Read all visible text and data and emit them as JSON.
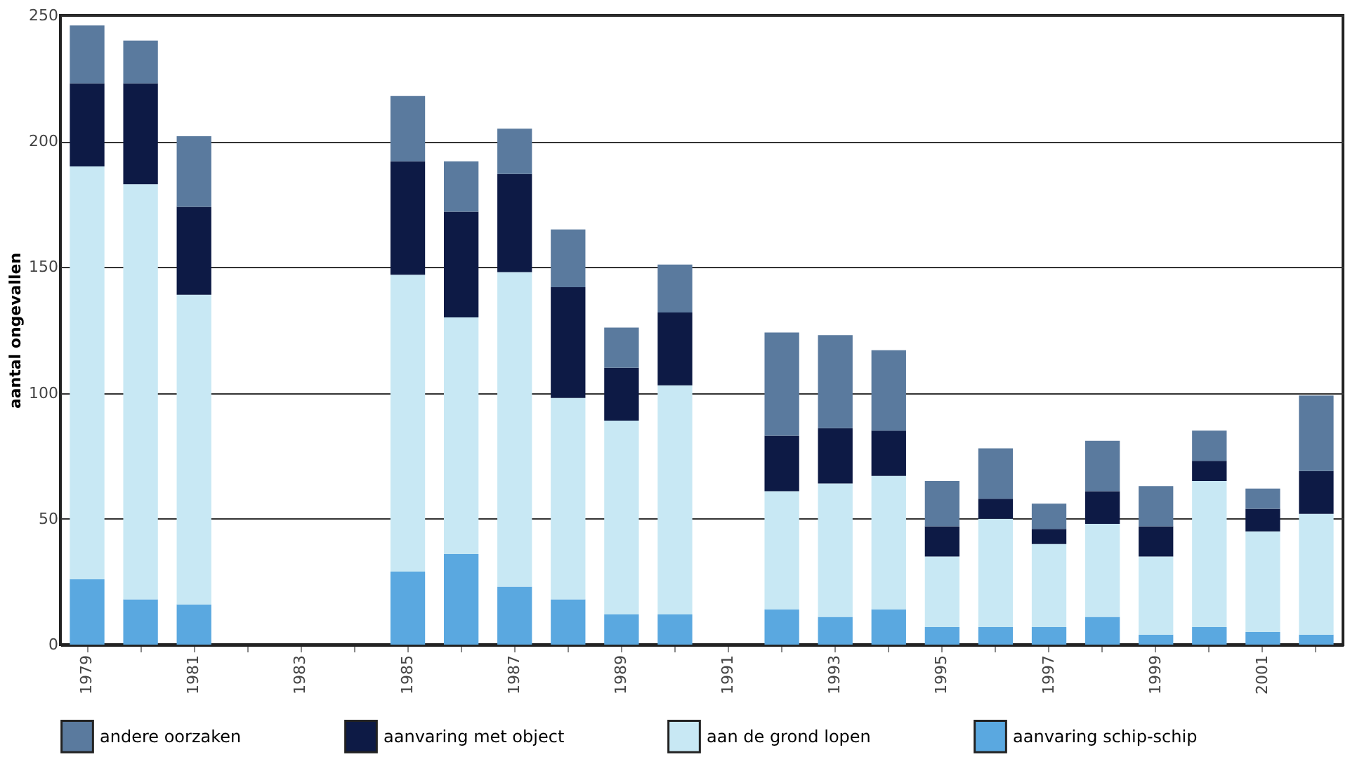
{
  "chart_data": {
    "type": "bar",
    "stacked": true,
    "ylabel": "aantal ongevallen",
    "categories": [
      "1979",
      null,
      "1981",
      null,
      "1983",
      null,
      "1985",
      null,
      "1987",
      null,
      "1989",
      null,
      "1991",
      null,
      "1993",
      null,
      "1995",
      null,
      "1997",
      null,
      "1999",
      null,
      "2001",
      null
    ],
    "series": [
      {
        "name": "aanvaring schip-schip",
        "color": "#5aa8e0",
        "values": [
          26,
          18,
          16,
          null,
          null,
          null,
          29,
          36,
          23,
          18,
          12,
          12,
          null,
          14,
          11,
          14,
          7,
          7,
          7,
          11,
          4,
          7,
          5,
          4
        ]
      },
      {
        "name": "aan de grond lopen",
        "color": "#c8e8f4",
        "values": [
          164,
          165,
          123,
          null,
          null,
          null,
          118,
          94,
          125,
          80,
          77,
          91,
          null,
          47,
          53,
          53,
          28,
          43,
          33,
          37,
          31,
          58,
          40,
          48
        ]
      },
      {
        "name": "aanvaring met object",
        "color": "#0d1a45",
        "values": [
          33,
          40,
          35,
          null,
          null,
          null,
          45,
          42,
          39,
          44,
          21,
          29,
          null,
          22,
          22,
          18,
          12,
          8,
          6,
          13,
          12,
          8,
          9,
          17
        ]
      },
      {
        "name": "andere oorzaken",
        "color": "#5a7a9e",
        "values": [
          23,
          17,
          28,
          null,
          null,
          null,
          26,
          20,
          18,
          23,
          16,
          19,
          null,
          41,
          37,
          32,
          18,
          20,
          10,
          20,
          16,
          12,
          8,
          30
        ]
      }
    ],
    "ylim": [
      0,
      250
    ],
    "yticks": [
      0,
      50,
      100,
      150,
      200,
      250
    ],
    "grid": "y",
    "legend": "bottom"
  }
}
